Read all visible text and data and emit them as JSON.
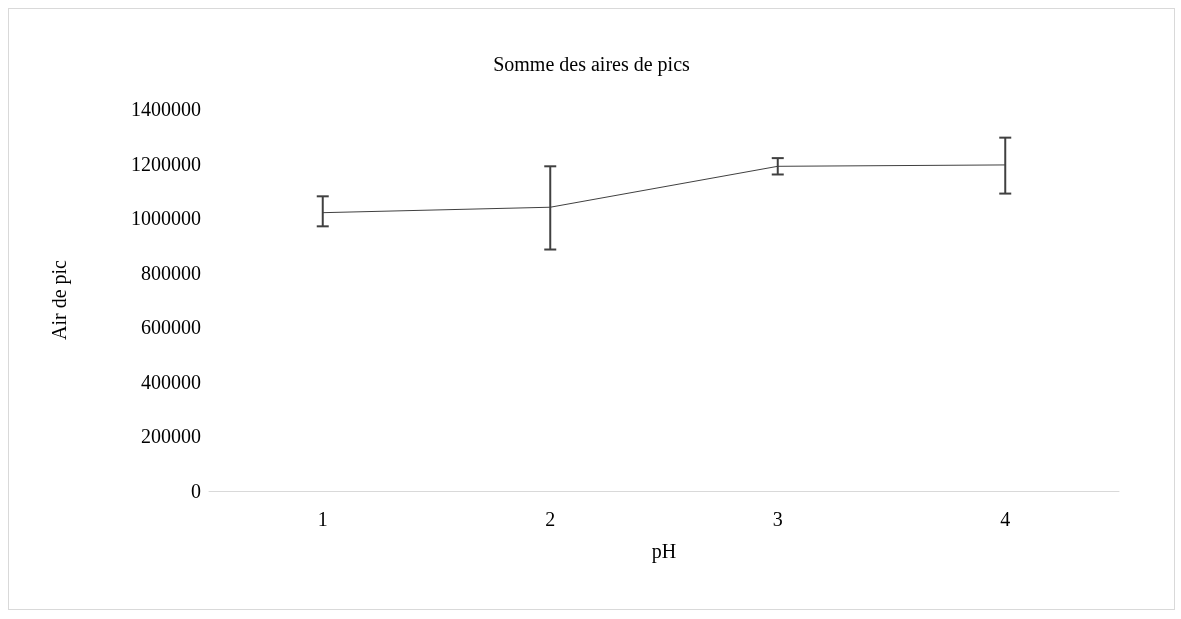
{
  "chart_data": {
    "type": "line",
    "title": "Somme des aires de pics",
    "xlabel": "pH",
    "ylabel": "Air de pic",
    "categories": [
      "1",
      "2",
      "3",
      "4"
    ],
    "series": [
      {
        "color": "#404040",
        "values": [
          1020000,
          1040000,
          1190000,
          1195000
        ],
        "errors": [
          [
            970000,
            1080000
          ],
          [
            885000,
            1190000
          ],
          [
            1160000,
            1220000
          ],
          [
            1090000,
            1295000
          ]
        ]
      }
    ],
    "ylim": [
      0,
      1400000
    ],
    "yticks": [
      0,
      200000,
      400000,
      600000,
      800000,
      1000000,
      1200000,
      1400000
    ],
    "grid": false,
    "marker": "none",
    "line_style": "solid"
  }
}
